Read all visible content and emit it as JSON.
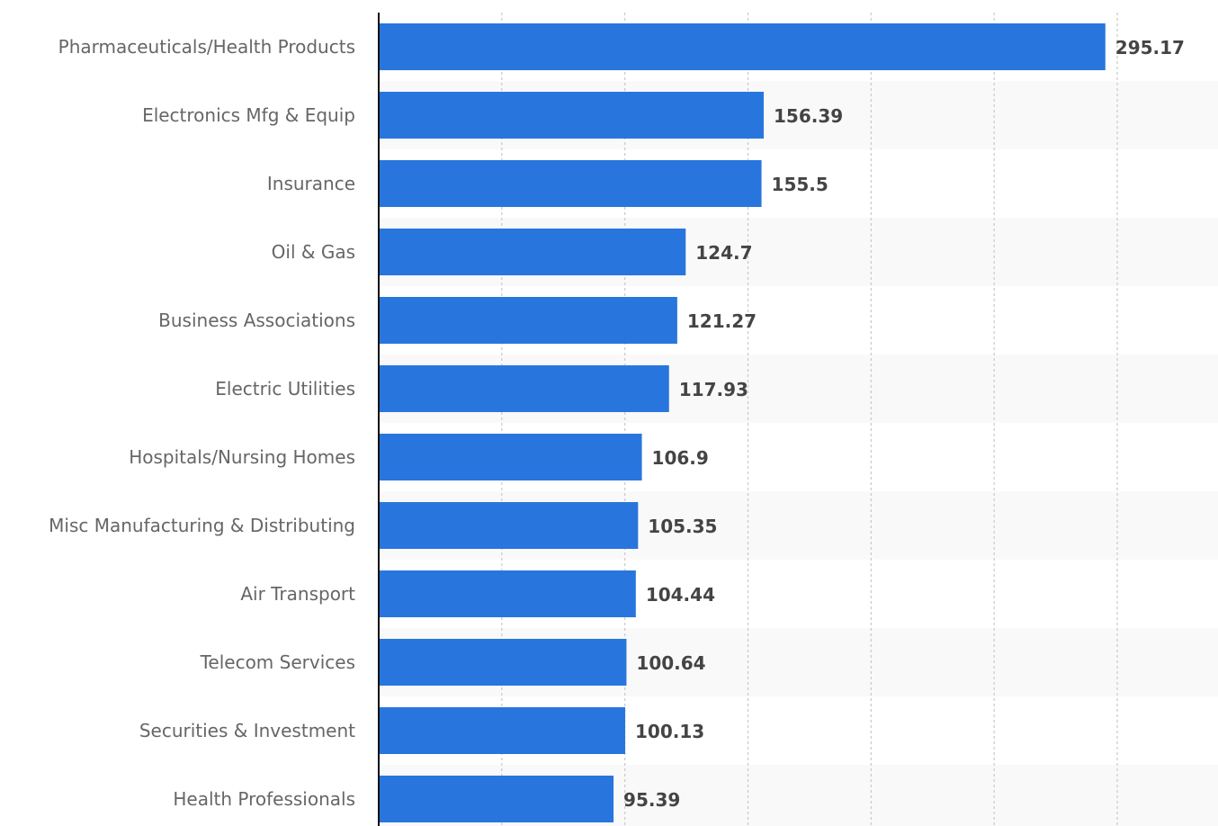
{
  "chart_data": {
    "type": "bar",
    "orientation": "horizontal",
    "title": "",
    "xlabel": "",
    "ylabel": "",
    "categories": [
      "Pharmaceuticals/Health Products",
      "Electronics Mfg & Equip",
      "Insurance",
      "Oil & Gas",
      "Business Associations",
      "Electric Utilities",
      "Hospitals/Nursing Homes",
      "Misc Manufacturing & Distributing",
      "Air Transport",
      "Telecom Services",
      "Securities & Investment",
      "Health Professionals"
    ],
    "values": [
      295.17,
      156.39,
      155.5,
      124.7,
      121.27,
      117.93,
      106.9,
      105.35,
      104.44,
      100.64,
      100.13,
      95.39
    ],
    "value_labels": [
      "295.17",
      "156.39",
      "155.5",
      "124.7",
      "121.27",
      "117.93",
      "106.9",
      "105.35",
      "104.44",
      "100.64",
      "100.13",
      "95.39"
    ],
    "xlim": [
      0,
      300
    ],
    "gridlines": [
      50,
      100,
      150,
      200,
      250,
      300
    ],
    "grid": true,
    "legend": "none",
    "bar_color": "#2876dd",
    "band_color": "#f9f9f9"
  }
}
